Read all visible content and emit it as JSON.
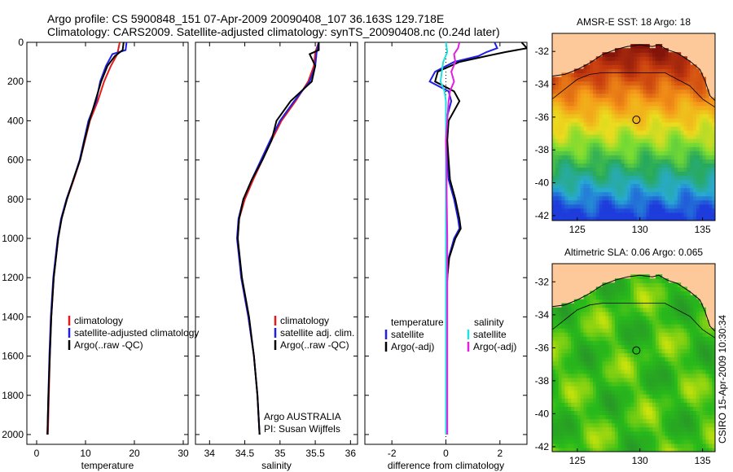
{
  "title": {
    "line1": "Argo profile: CS 5900848_151 07-Apr-2009 20090408_107 36.163S 129.718E",
    "line2": "Climatology: CARS2009. Satellite-adjusted climatology: synTS_20090408.nc (0.24d later)"
  },
  "footer_stamp": "CSIRO 15-Apr-2009 10:30:34",
  "colors": {
    "climatology": "#e41a1c",
    "satellite": "#1f1fe6",
    "argo": "#000000",
    "satellite_salinity": "#22e0e0",
    "argo_salinity": "#e020e0",
    "land": "#fdc89a"
  },
  "chart_data": [
    {
      "type": "line",
      "name": "temperature-profile",
      "xlabel": "temperature",
      "ylabel": "",
      "xlim": [
        -2,
        31
      ],
      "ylim": [
        2050,
        0
      ],
      "xticks": [
        0,
        10,
        20,
        30
      ],
      "yticks": [
        0,
        200,
        400,
        600,
        800,
        1000,
        1200,
        1400,
        1600,
        1800,
        2000
      ],
      "legend": [
        "climatology",
        "satellite-adjusted climatology",
        "Argo(..raw -QC)"
      ],
      "legend_position": "lower-right",
      "series": [
        {
          "name": "climatology",
          "color": "#e41a1c",
          "depth": [
            0,
            60,
            120,
            200,
            300,
            400,
            500,
            600,
            700,
            800,
            900,
            1000,
            1200,
            1400,
            1600,
            1800,
            2000
          ],
          "values": [
            17.0,
            16.5,
            15.2,
            13.8,
            12.5,
            10.9,
            9.9,
            8.9,
            7.6,
            6.2,
            5.1,
            4.4,
            3.5,
            3.0,
            2.7,
            2.5,
            2.3
          ]
        },
        {
          "name": "satellite-adjusted climatology",
          "color": "#1f1fe6",
          "depth": [
            0,
            40,
            60,
            120,
            200,
            300,
            400,
            500,
            600,
            700,
            800,
            900,
            1000,
            1200,
            1400,
            1600,
            1800,
            2000
          ],
          "values": [
            18.4,
            18.2,
            15.5,
            14.2,
            13.0,
            12.2,
            10.6,
            9.7,
            8.8,
            7.5,
            6.1,
            5.0,
            4.3,
            3.4,
            2.9,
            2.6,
            2.4,
            2.2
          ]
        },
        {
          "name": "Argo(..raw -QC)",
          "color": "#000000",
          "depth": [
            0,
            40,
            70,
            120,
            200,
            300,
            400,
            500,
            600,
            700,
            800,
            900,
            1000,
            1200,
            1400,
            1600,
            1800,
            2000
          ],
          "values": [
            17.8,
            17.6,
            16.0,
            14.5,
            13.2,
            12.0,
            10.8,
            9.8,
            8.9,
            7.5,
            6.2,
            5.1,
            4.4,
            3.5,
            3.0,
            2.7,
            2.4,
            2.2
          ]
        }
      ]
    },
    {
      "type": "line",
      "name": "salinity-profile",
      "xlabel": "salinity",
      "xlim": [
        33.8,
        36.1
      ],
      "ylim": [
        2050,
        0
      ],
      "xticks": [
        34,
        34.5,
        35,
        35.5,
        36
      ],
      "legend": [
        "climatology",
        "satellite adj. clim.",
        "Argo(..raw -QC)"
      ],
      "legend_position": "lower-right",
      "annotation": [
        "Argo AUSTRALIA",
        "PI: Susan Wijffels"
      ],
      "series": [
        {
          "name": "climatology",
          "color": "#e41a1c",
          "depth": [
            0,
            50,
            120,
            200,
            300,
            400,
            500,
            600,
            700,
            800,
            900,
            1000,
            1200,
            1400,
            1600,
            1800,
            2000
          ],
          "values": [
            35.55,
            35.5,
            35.48,
            35.4,
            35.22,
            35.02,
            34.88,
            34.75,
            34.62,
            34.5,
            34.42,
            34.4,
            34.45,
            34.55,
            34.63,
            34.68,
            34.71
          ]
        },
        {
          "name": "satellite adj. clim.",
          "color": "#1f1fe6",
          "depth": [
            0,
            50,
            120,
            200,
            300,
            400,
            500,
            600,
            700,
            800,
            900,
            1000,
            1200,
            1400,
            1600,
            1800,
            2000
          ],
          "values": [
            35.55,
            35.52,
            35.5,
            35.42,
            35.2,
            35.0,
            34.86,
            34.73,
            34.6,
            34.48,
            34.41,
            34.39,
            34.45,
            34.55,
            34.63,
            34.68,
            34.71
          ]
        },
        {
          "name": "Argo(..raw -QC)",
          "color": "#000000",
          "depth": [
            0,
            40,
            60,
            120,
            200,
            300,
            350,
            400,
            500,
            600,
            700,
            800,
            900,
            1000,
            1200,
            1400,
            1600,
            1800,
            2000
          ],
          "values": [
            35.55,
            35.55,
            35.42,
            35.5,
            35.45,
            35.15,
            35.05,
            34.95,
            34.88,
            34.75,
            34.6,
            34.48,
            34.42,
            34.4,
            34.46,
            34.56,
            34.63,
            34.68,
            34.71
          ]
        }
      ]
    },
    {
      "type": "line",
      "name": "difference-profile",
      "xlabel": "difference from climatology",
      "xlim": [
        -3,
        3
      ],
      "ylim": [
        2050,
        0
      ],
      "xticks": [
        -2,
        0,
        2
      ],
      "legend_left": {
        "heading": "temperature",
        "items": [
          "satellite",
          "Argo(-adj)"
        ]
      },
      "legend_right": {
        "heading": "salinity",
        "items": [
          "satellite",
          "Argo(-adj)"
        ]
      },
      "series": [
        {
          "name": "temperature satellite",
          "color": "#1f1fe6",
          "depth": [
            0,
            30,
            50,
            70,
            100,
            150,
            200,
            250,
            300,
            400,
            500,
            600,
            700,
            800,
            900,
            950,
            1000,
            1100,
            1200,
            1400,
            1600,
            1800,
            2000
          ],
          "values": [
            1.8,
            1.9,
            1.5,
            1.2,
            0.3,
            -0.4,
            -0.6,
            0.1,
            0.2,
            0.0,
            0.02,
            0.05,
            0.1,
            0.3,
            0.45,
            0.5,
            0.3,
            0.1,
            0.05,
            0.0,
            0.0,
            0.0,
            0.0
          ]
        },
        {
          "name": "temperature Argo(-adj)",
          "color": "#000000",
          "depth": [
            0,
            30,
            50,
            70,
            100,
            150,
            200,
            250,
            300,
            400,
            500,
            600,
            700,
            800,
            900,
            950,
            1000,
            1100,
            1200,
            1400,
            1600,
            1800,
            2000
          ],
          "values": [
            2.8,
            3.0,
            2.2,
            1.5,
            0.5,
            -0.3,
            -0.4,
            0.3,
            0.5,
            0.1,
            0.05,
            0.1,
            0.15,
            0.35,
            0.5,
            0.55,
            0.35,
            0.12,
            0.05,
            0.0,
            0.0,
            0.0,
            0.0
          ]
        },
        {
          "name": "salinity satellite",
          "color": "#22e0e0",
          "depth": [
            0,
            50,
            100,
            150,
            200,
            250,
            300,
            400,
            500,
            600,
            800,
            1000,
            1400,
            1800,
            2000
          ],
          "values": [
            0.0,
            0.05,
            -0.1,
            -0.15,
            -0.2,
            -0.05,
            0.0,
            0.0,
            0.0,
            0.0,
            0.0,
            0.0,
            0.0,
            0.0,
            0.0
          ]
        },
        {
          "name": "salinity Argo(-adj)",
          "color": "#e020e0",
          "depth": [
            0,
            30,
            60,
            100,
            150,
            200,
            250,
            300,
            400,
            500,
            600,
            800,
            1000,
            1400,
            1800,
            2000
          ],
          "values": [
            0.5,
            0.45,
            0.3,
            0.35,
            0.2,
            0.3,
            0.15,
            0.1,
            0.05,
            0.0,
            0.02,
            0.03,
            0.05,
            0.05,
            0.05,
            0.05
          ]
        }
      ]
    },
    {
      "type": "heatmap",
      "name": "sst-map",
      "title": "AMSR-E SST: 18 Argo: 18",
      "xlim": [
        123,
        136
      ],
      "ylim": [
        -42.3,
        -30.9
      ],
      "xticks": [
        125,
        130,
        135
      ],
      "yticks": [
        -32,
        -34,
        -36,
        -38,
        -40,
        -42
      ],
      "marker": {
        "lon": 129.718,
        "lat": -36.163
      }
    },
    {
      "type": "heatmap",
      "name": "sla-map",
      "title": "Altimetric SLA: 0.06 Argo: 0.065",
      "xlim": [
        123,
        136
      ],
      "ylim": [
        -42.3,
        -30.9
      ],
      "xticks": [
        125,
        130,
        135
      ],
      "yticks": [
        -32,
        -34,
        -36,
        -38,
        -40,
        -42
      ],
      "marker": {
        "lon": 129.718,
        "lat": -36.163
      }
    }
  ]
}
